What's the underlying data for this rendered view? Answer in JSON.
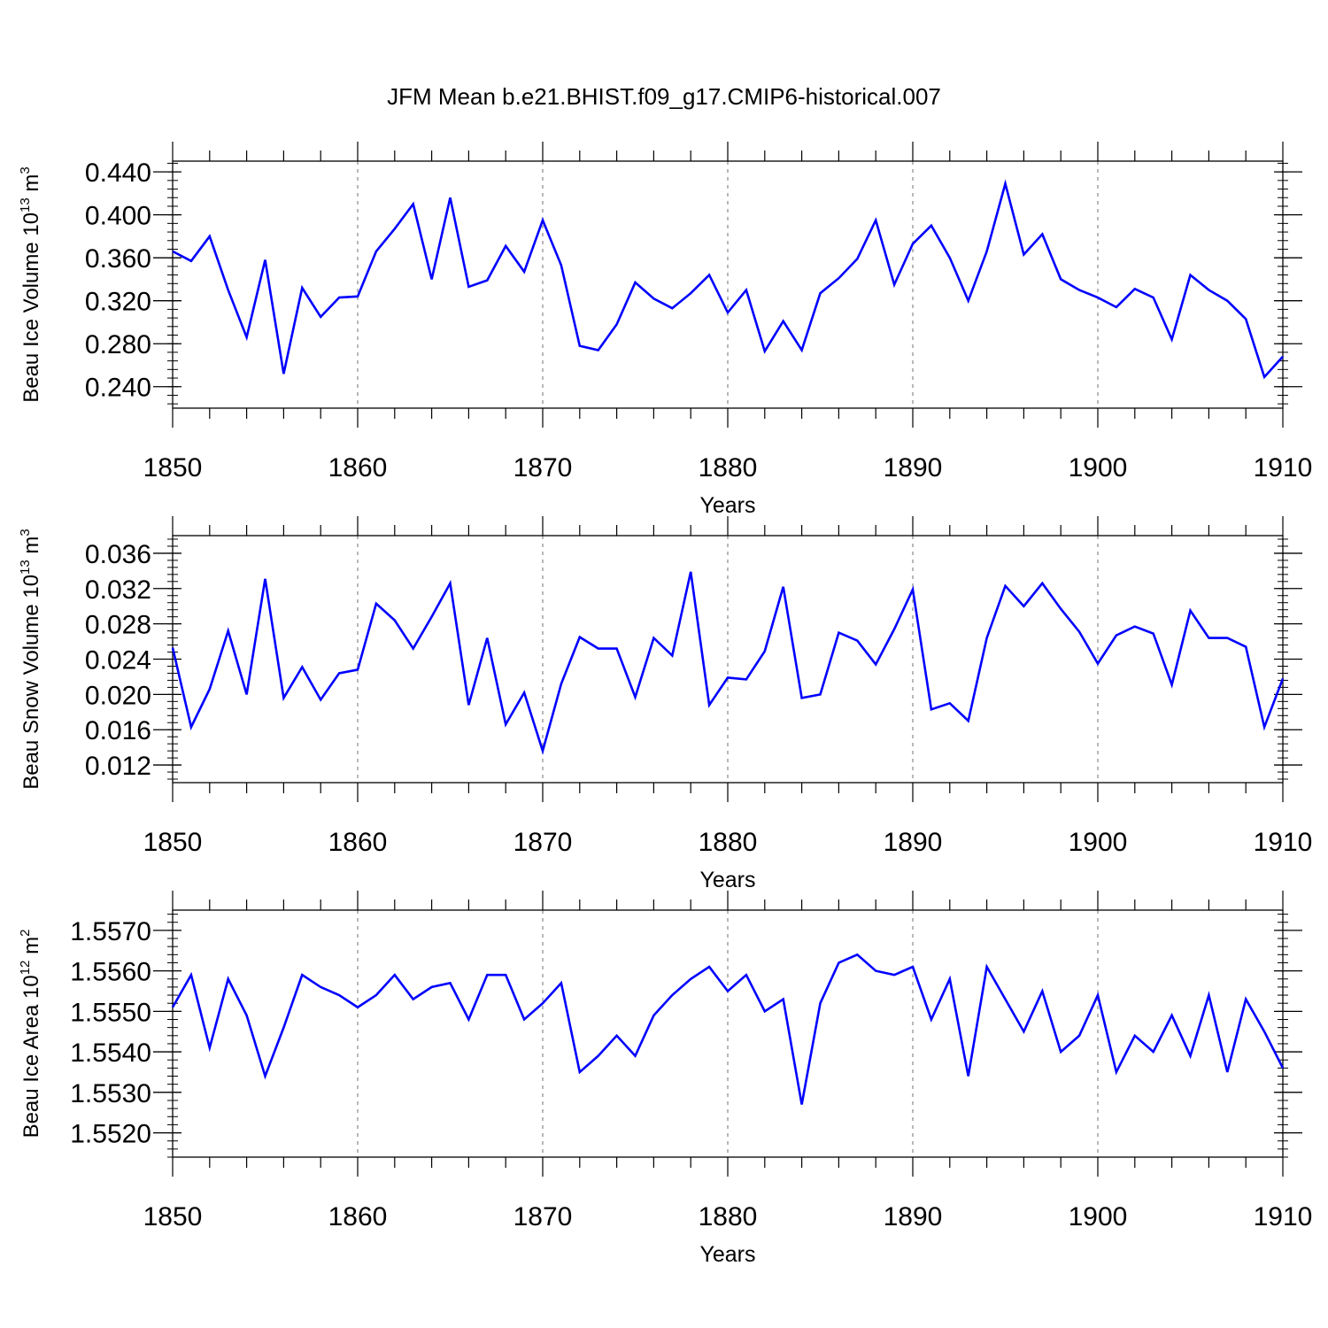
{
  "figure": {
    "title": "JFM Mean b.e21.BHIST.f09_g17.CMIP6-historical.007",
    "line_color": "#0000ff",
    "grid_color": "#888888"
  },
  "chart_data": [
    {
      "type": "line",
      "title": "JFM Mean b.e21.BHIST.f09_g17.CMIP6-historical.007",
      "xlabel": "Years",
      "ylabel": {
        "text": "Beau Ice Volume 10",
        "exp": "13",
        "unit": "m",
        "unit_exp": "3"
      },
      "xlim": [
        1850,
        1910
      ],
      "ylim": [
        0.22,
        0.45
      ],
      "yticks": [
        0.24,
        0.28,
        0.32,
        0.36,
        0.4,
        0.44
      ],
      "ytick_labels": [
        "0.240",
        "0.280",
        "0.320",
        "0.360",
        "0.400",
        "0.440"
      ],
      "ytick_minor": 0.008,
      "xticks": [
        1850,
        1860,
        1870,
        1880,
        1890,
        1900,
        1910
      ],
      "xtick_labels": [
        "1850",
        "1860",
        "1870",
        "1880",
        "1890",
        "1900",
        "1910"
      ],
      "grid": "vertical dashed at major x ticks",
      "series": [
        {
          "name": "Beau Ice Volume",
          "x_start": 1850,
          "values": [
            0.366,
            0.357,
            0.38,
            0.33,
            0.286,
            0.358,
            0.252,
            0.332,
            0.305,
            0.323,
            0.324,
            0.366,
            0.387,
            0.41,
            0.34,
            0.416,
            0.333,
            0.339,
            0.371,
            0.347,
            0.395,
            0.353,
            0.278,
            0.274,
            0.298,
            0.337,
            0.322,
            0.313,
            0.327,
            0.344,
            0.309,
            0.33,
            0.273,
            0.301,
            0.274,
            0.327,
            0.341,
            0.359,
            0.395,
            0.335,
            0.373,
            0.39,
            0.36,
            0.32,
            0.366,
            0.429,
            0.363,
            0.382,
            0.34,
            0.33,
            0.323,
            0.314,
            0.331,
            0.323,
            0.284,
            0.344,
            0.33,
            0.32,
            0.303,
            0.249,
            0.268
          ]
        }
      ]
    },
    {
      "type": "line",
      "xlabel": "Years",
      "ylabel": {
        "text": "Beau Snow Volume 10",
        "exp": "13",
        "unit": "m",
        "unit_exp": "3"
      },
      "xlim": [
        1850,
        1910
      ],
      "ylim": [
        0.01,
        0.038
      ],
      "yticks": [
        0.012,
        0.016,
        0.02,
        0.024,
        0.028,
        0.032,
        0.036
      ],
      "ytick_labels": [
        "0.012",
        "0.016",
        "0.020",
        "0.024",
        "0.028",
        "0.032",
        "0.036"
      ],
      "ytick_minor": 0.0008,
      "xticks": [
        1850,
        1860,
        1870,
        1880,
        1890,
        1900,
        1910
      ],
      "xtick_labels": [
        "1850",
        "1860",
        "1870",
        "1880",
        "1890",
        "1900",
        "1910"
      ],
      "grid": "vertical dashed at major x ticks",
      "series": [
        {
          "name": "Beau Snow Volume",
          "x_start": 1850,
          "values": [
            0.0253,
            0.0163,
            0.0206,
            0.0272,
            0.02,
            0.0331,
            0.0196,
            0.0231,
            0.0194,
            0.0224,
            0.0228,
            0.0303,
            0.0284,
            0.0252,
            0.0288,
            0.0326,
            0.0188,
            0.0264,
            0.0166,
            0.0202,
            0.0136,
            0.0212,
            0.0265,
            0.0252,
            0.0252,
            0.0197,
            0.0264,
            0.0244,
            0.0339,
            0.0188,
            0.0219,
            0.0217,
            0.0249,
            0.0322,
            0.0196,
            0.02,
            0.027,
            0.0261,
            0.0234,
            0.0274,
            0.0319,
            0.0183,
            0.019,
            0.017,
            0.0264,
            0.0323,
            0.03,
            0.0326,
            0.0297,
            0.0271,
            0.0235,
            0.0267,
            0.0277,
            0.0269,
            0.0211,
            0.0295,
            0.0264,
            0.0264,
            0.0254,
            0.0163,
            0.0218
          ]
        }
      ]
    },
    {
      "type": "line",
      "xlabel": "Years",
      "ylabel": {
        "text": "Beau Ice Area 10",
        "exp": "12",
        "unit": "m",
        "unit_exp": "2"
      },
      "xlim": [
        1850,
        1910
      ],
      "ylim": [
        1.5514,
        1.5575
      ],
      "yticks": [
        1.552,
        1.553,
        1.554,
        1.555,
        1.556,
        1.557
      ],
      "ytick_labels": [
        "1.5520",
        "1.5530",
        "1.5540",
        "1.5550",
        "1.5560",
        "1.5570"
      ],
      "ytick_minor": 0.0002,
      "xticks": [
        1850,
        1860,
        1870,
        1880,
        1890,
        1900,
        1910
      ],
      "xtick_labels": [
        "1850",
        "1860",
        "1870",
        "1880",
        "1890",
        "1900",
        "1910"
      ],
      "grid": "vertical dashed at major x ticks",
      "series": [
        {
          "name": "Beau Ice Area",
          "x_start": 1850,
          "values": [
            1.5551,
            1.5559,
            1.5541,
            1.5558,
            1.5549,
            1.5534,
            1.5546,
            1.5559,
            1.5556,
            1.5554,
            1.5551,
            1.5554,
            1.5559,
            1.5553,
            1.5556,
            1.5557,
            1.5548,
            1.5559,
            1.5559,
            1.5548,
            1.5552,
            1.5557,
            1.5535,
            1.5539,
            1.5544,
            1.5539,
            1.5549,
            1.5554,
            1.5558,
            1.5561,
            1.5555,
            1.5559,
            1.555,
            1.5553,
            1.5527,
            1.5552,
            1.5562,
            1.5564,
            1.556,
            1.5559,
            1.5561,
            1.5548,
            1.5558,
            1.5534,
            1.5561,
            1.5553,
            1.5545,
            1.5555,
            1.554,
            1.5544,
            1.5554,
            1.5535,
            1.5544,
            1.554,
            1.5549,
            1.5539,
            1.5554,
            1.5535,
            1.5553,
            1.5545,
            1.5536
          ]
        }
      ]
    }
  ]
}
